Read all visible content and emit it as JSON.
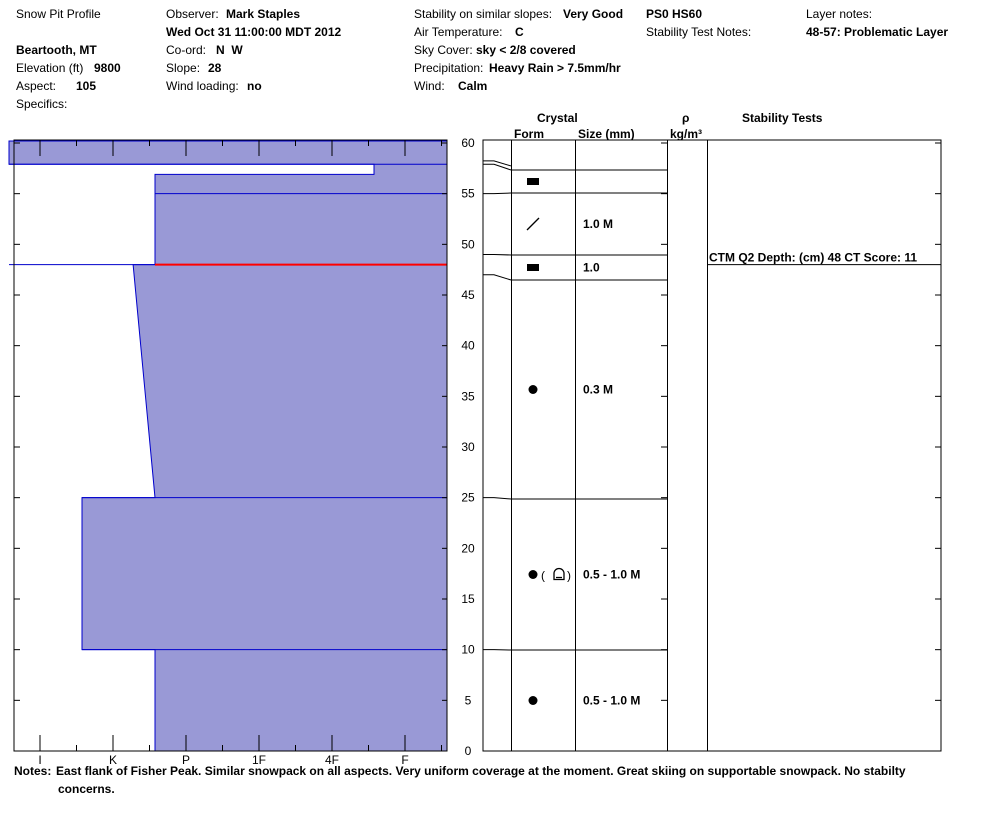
{
  "header": {
    "title": "Snow Pit Profile",
    "location": "Beartooth, MT",
    "elevation_label": "Elevation (ft)",
    "elevation": "9800",
    "aspect_label": "Aspect:",
    "aspect": "105",
    "specifics_label": "Specifics:",
    "observer_label": "Observer:",
    "observer": "Mark Staples",
    "date": "Wed Oct 31 11:00:00 MDT 2012",
    "coord_label": "Co-ord:",
    "coord": "N  W",
    "slope_label": "Slope:",
    "slope": "28",
    "wind_loading_label": "Wind loading:",
    "wind_loading": "no",
    "stability_label": "Stability on similar slopes:",
    "stability": "Very Good",
    "air_temp_label": "Air Temperature:",
    "air_temp": "C",
    "sky_label": "Sky Cover:",
    "sky": "sky < 2/8 covered",
    "precip_label": "Precipitation:",
    "precip": "Heavy Rain > 7.5mm/hr",
    "wind_label": "Wind:",
    "wind": "Calm",
    "ps": "PS0 HS60",
    "stability_notes_label": "Stability Test Notes:",
    "layer_notes_label": "Layer notes:",
    "layer_notes": "48-57: Problematic Layer"
  },
  "columns": {
    "crystal": "Crystal",
    "form": "Form",
    "size": "Size (mm)",
    "rho": "ρ",
    "density_unit": "kg/m³",
    "stability_tests": "Stability Tests"
  },
  "notes": {
    "label": "Notes:",
    "line1": "East flank of Fisher Peak.  Similar snowpack on all aspects.  Very uniform coverage at the moment.  Great skiing on supportable snowpack.  No stabilty",
    "line2": "concerns."
  },
  "colors": {
    "fill": "#9999d6",
    "edge": "#0000cc",
    "weak_layer": "#ff0000"
  },
  "chart_data": {
    "type": "area",
    "title": "",
    "xlabel": "",
    "ylabel": "",
    "hardness_scale": [
      "I",
      "K",
      "P",
      "1F",
      "4F",
      "F"
    ],
    "hardness_scale_direction": "left-to-right",
    "y_ticks": [
      0,
      5,
      10,
      15,
      20,
      25,
      30,
      35,
      40,
      45,
      50,
      55,
      60
    ],
    "ylim": [
      0,
      60
    ],
    "hardness_profile": [
      {
        "y": 0,
        "h": 4
      },
      {
        "y": 10,
        "h": 4
      },
      {
        "y": 10,
        "h": 5
      },
      {
        "y": 25,
        "h": 5
      },
      {
        "y": 25,
        "h": 4
      },
      {
        "y": 48,
        "h": 4.3
      },
      {
        "y": 48,
        "h": 4
      },
      {
        "y": 56.9,
        "h": 4
      },
      {
        "y": 56.9,
        "h": 1
      },
      {
        "y": 57.9,
        "h": 1
      },
      {
        "y": 57.9,
        "h": 6
      },
      {
        "y": 60.5,
        "h": 6
      }
    ],
    "layer_boundaries": [
      10,
      25,
      47,
      49,
      55,
      57.9
    ],
    "layers": [
      {
        "top": 10,
        "bottom": 0,
        "form": "rounded-grains",
        "size": "0.5 - 1.0 M"
      },
      {
        "top": 25,
        "bottom": 10,
        "form": "rounded-grains-faceted",
        "size": "0.5 - 1.0 M"
      },
      {
        "top": 47,
        "bottom": 25,
        "form": "rounded-grains",
        "size": "0.3 M"
      },
      {
        "top": 49,
        "bottom": 47,
        "form": "crust",
        "size": "1.0"
      },
      {
        "top": 55,
        "bottom": 49,
        "form": "slash",
        "size": "1.0 M"
      },
      {
        "top": 57.9,
        "bottom": 55,
        "form": "crust",
        "size": ""
      }
    ],
    "weak_layer_depth": 48,
    "stability_test": {
      "depth": 48,
      "label": "CTM Q2 Depth: (cm) 48 CT Score: 11"
    }
  }
}
